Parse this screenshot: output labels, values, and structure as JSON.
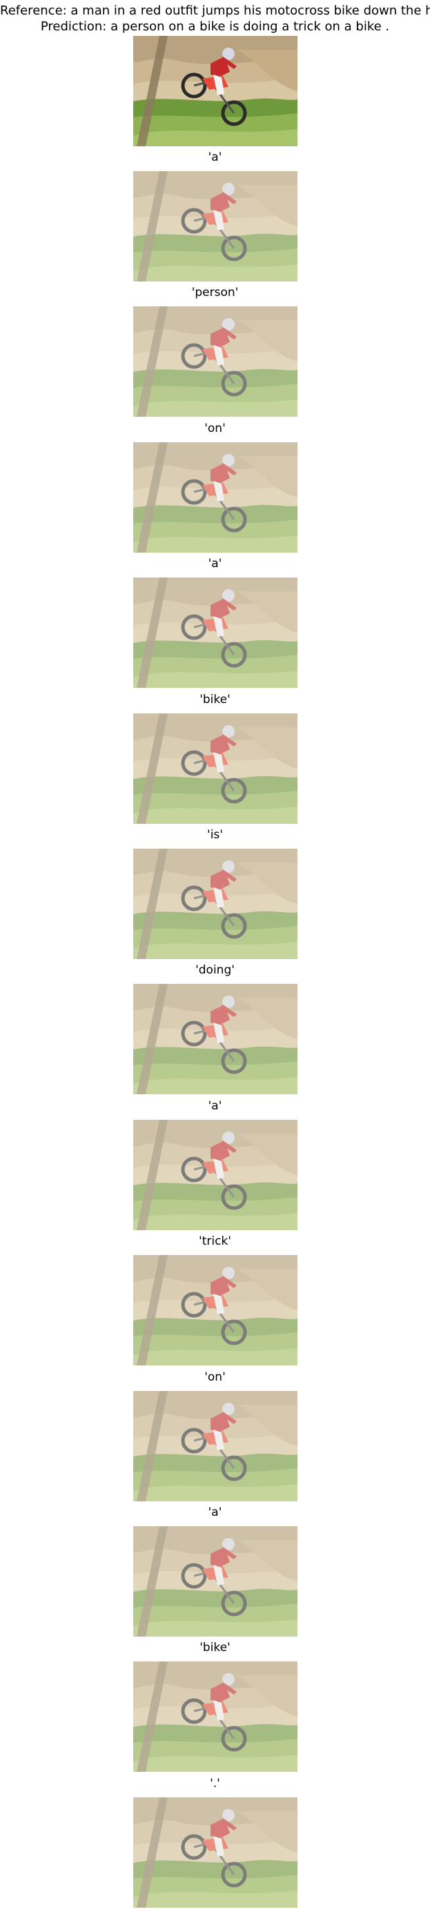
{
  "header": {
    "reference_label": "Reference: a man in a red outfit jumps his motocross bike down the hill .",
    "prediction_label": "Prediction: a person on a bike is doing a trick on a bike ."
  },
  "image": {
    "description_icon": "motocross-photo",
    "colors": {
      "dirt": "#cdb793",
      "dirt_dark": "#b89e78",
      "grass": "#6f9a3c",
      "grass_light": "#a7c46a",
      "rider_red": "#c42a2a",
      "rider_white": "#f2f2f2",
      "wheel": "#2b2b2b",
      "trunk": "#8b7a5c"
    }
  },
  "tokens": [
    "'a'",
    "'person'",
    "'on'",
    "'a'",
    "'bike'",
    "'is'",
    "'doing'",
    "'a'",
    "'trick'",
    "'on'",
    "'a'",
    "'bike'",
    "'.'"
  ]
}
